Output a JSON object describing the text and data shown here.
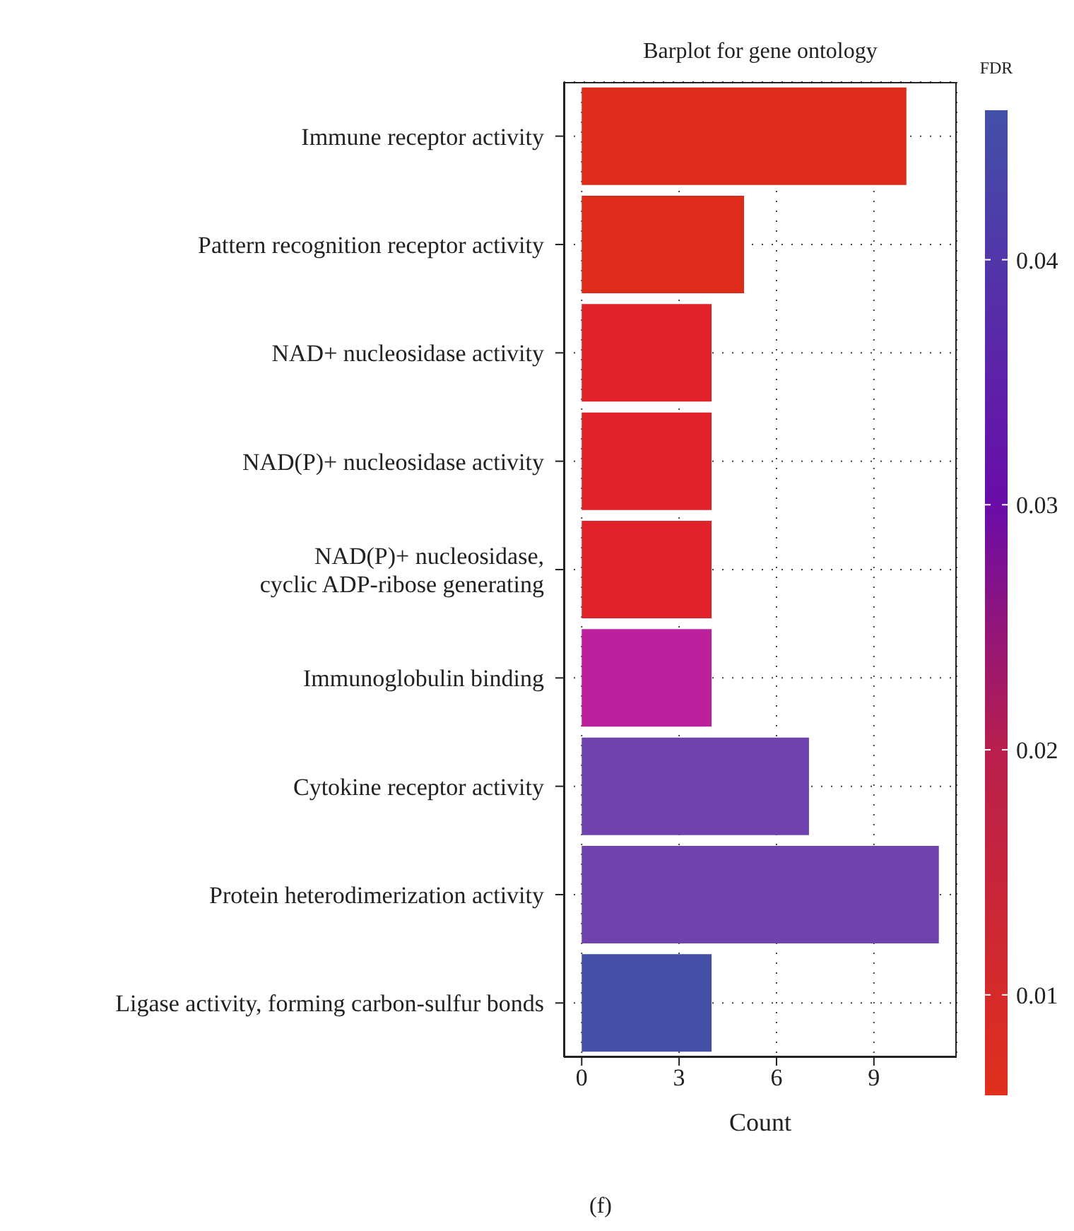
{
  "chart_data": {
    "type": "bar",
    "orientation": "horizontal",
    "title": "Barplot for gene ontology",
    "xlabel": "Count",
    "clabel": "FDR",
    "categories": [
      "Immune receptor activity",
      "Pattern recognition receptor activity",
      "NAD+ nucleosidase activity",
      "NAD(P)+ nucleosidase activity",
      "NAD(P)+ nucleosidase,\ncyclic ADP-ribose generating",
      "Immunoglobulin binding",
      "Cytokine receptor activity",
      "Protein heterodimerization activity",
      "Ligase activity, forming carbon-sulfur bonds"
    ],
    "values": [
      10,
      5,
      4,
      4,
      4,
      4,
      7,
      11,
      4
    ],
    "colors": [
      "#dd2c1a",
      "#dd2c1a",
      "#e0222a",
      "#e0222a",
      "#e0222a",
      "#bc209c",
      "#6f42ae",
      "#6f42ae",
      "#434ea5"
    ],
    "xlim": [
      -0.55,
      11.55
    ],
    "xticks": [
      0,
      3,
      6,
      9
    ],
    "clim": [
      0.0059,
      0.0461
    ],
    "cticks": [
      0.01,
      0.02,
      0.03,
      0.04
    ],
    "grid": true,
    "annotations": [
      "(f)"
    ]
  }
}
